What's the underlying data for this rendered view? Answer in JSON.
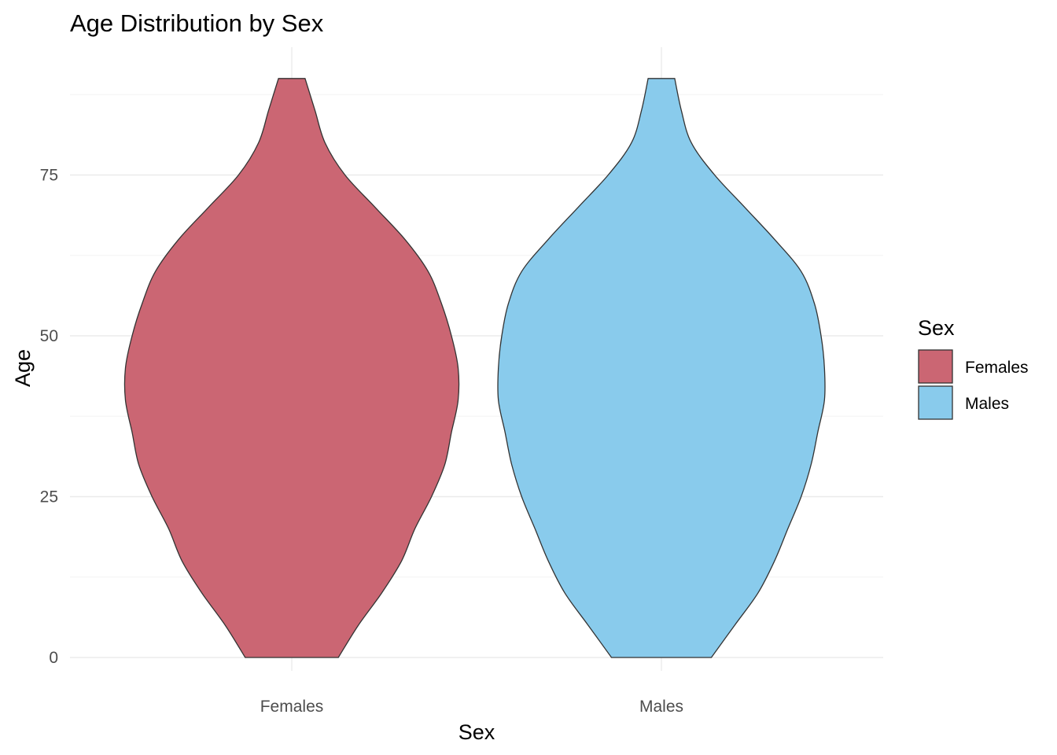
{
  "chart_data": {
    "type": "violin",
    "title": "Age Distribution by Sex",
    "xlabel": "Sex",
    "ylabel": "Age",
    "categories": [
      "Females",
      "Males"
    ],
    "ylim": [
      0,
      90
    ],
    "yticks": [
      0,
      25,
      50,
      75
    ],
    "y_tick_labels": [
      "0",
      "25",
      "50",
      "75"
    ],
    "grid": true,
    "legend": {
      "title": "Sex",
      "placement": "right",
      "entries": [
        {
          "label": "Females",
          "color": "#CB6673"
        },
        {
          "label": "Males",
          "color": "#89CBEC"
        }
      ]
    },
    "series": [
      {
        "name": "Females",
        "color": "#CB6673",
        "density_profile": [
          {
            "age": 0,
            "halfwidth": 0.14
          },
          {
            "age": 5,
            "halfwidth": 0.2
          },
          {
            "age": 10,
            "halfwidth": 0.27
          },
          {
            "age": 15,
            "halfwidth": 0.33
          },
          {
            "age": 20,
            "halfwidth": 0.37
          },
          {
            "age": 25,
            "halfwidth": 0.42
          },
          {
            "age": 30,
            "halfwidth": 0.46
          },
          {
            "age": 35,
            "halfwidth": 0.48
          },
          {
            "age": 40,
            "halfwidth": 0.5
          },
          {
            "age": 45,
            "halfwidth": 0.5
          },
          {
            "age": 50,
            "halfwidth": 0.48
          },
          {
            "age": 55,
            "halfwidth": 0.45
          },
          {
            "age": 60,
            "halfwidth": 0.41
          },
          {
            "age": 65,
            "halfwidth": 0.34
          },
          {
            "age": 70,
            "halfwidth": 0.25
          },
          {
            "age": 75,
            "halfwidth": 0.16
          },
          {
            "age": 80,
            "halfwidth": 0.1
          },
          {
            "age": 85,
            "halfwidth": 0.07
          },
          {
            "age": 90,
            "halfwidth": 0.04
          }
        ]
      },
      {
        "name": "Males",
        "color": "#89CBEC",
        "density_profile": [
          {
            "age": 0,
            "halfwidth": 0.15
          },
          {
            "age": 5,
            "halfwidth": 0.22
          },
          {
            "age": 10,
            "halfwidth": 0.29
          },
          {
            "age": 15,
            "halfwidth": 0.34
          },
          {
            "age": 20,
            "halfwidth": 0.38
          },
          {
            "age": 25,
            "halfwidth": 0.42
          },
          {
            "age": 30,
            "halfwidth": 0.45
          },
          {
            "age": 35,
            "halfwidth": 0.47
          },
          {
            "age": 40,
            "halfwidth": 0.49
          },
          {
            "age": 45,
            "halfwidth": 0.49
          },
          {
            "age": 50,
            "halfwidth": 0.48
          },
          {
            "age": 55,
            "halfwidth": 0.46
          },
          {
            "age": 60,
            "halfwidth": 0.42
          },
          {
            "age": 65,
            "halfwidth": 0.34
          },
          {
            "age": 70,
            "halfwidth": 0.25
          },
          {
            "age": 75,
            "halfwidth": 0.16
          },
          {
            "age": 80,
            "halfwidth": 0.09
          },
          {
            "age": 85,
            "halfwidth": 0.06
          },
          {
            "age": 90,
            "halfwidth": 0.04
          }
        ]
      }
    ]
  }
}
